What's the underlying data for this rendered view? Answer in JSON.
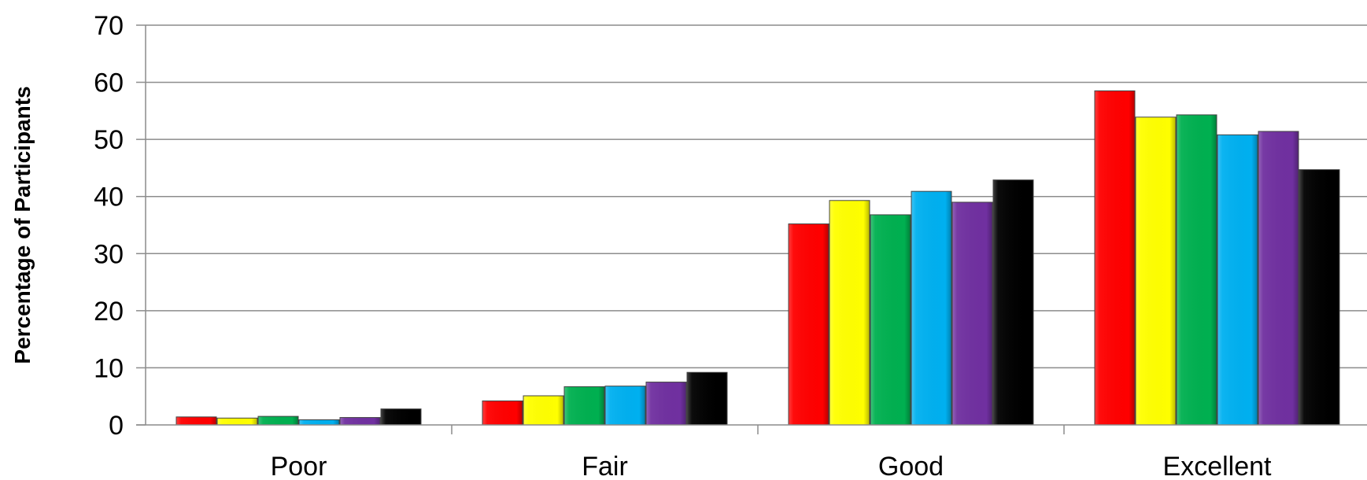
{
  "chart_data": {
    "type": "bar",
    "title": "",
    "xlabel": "",
    "ylabel": "Percentage of Participants",
    "ylim": [
      0,
      70
    ],
    "yticks": [
      0,
      10,
      20,
      30,
      40,
      50,
      60,
      70
    ],
    "categories": [
      "Poor",
      "Fair",
      "Good",
      "Excellent"
    ],
    "grid": true,
    "legend": "none",
    "series": [
      {
        "color": "#ff0000",
        "values": [
          1.4,
          4.2,
          35.2,
          58.5
        ]
      },
      {
        "color": "#ffff00",
        "values": [
          1.2,
          5.1,
          39.3,
          53.9
        ]
      },
      {
        "color": "#00b050",
        "values": [
          1.5,
          6.7,
          36.8,
          54.3
        ]
      },
      {
        "color": "#00b0f0",
        "values": [
          0.9,
          6.8,
          40.9,
          50.8
        ]
      },
      {
        "color": "#7030a0",
        "values": [
          1.3,
          7.5,
          39.0,
          51.4
        ]
      },
      {
        "color": "#000000",
        "values": [
          2.8,
          9.2,
          42.9,
          44.7
        ]
      }
    ]
  }
}
